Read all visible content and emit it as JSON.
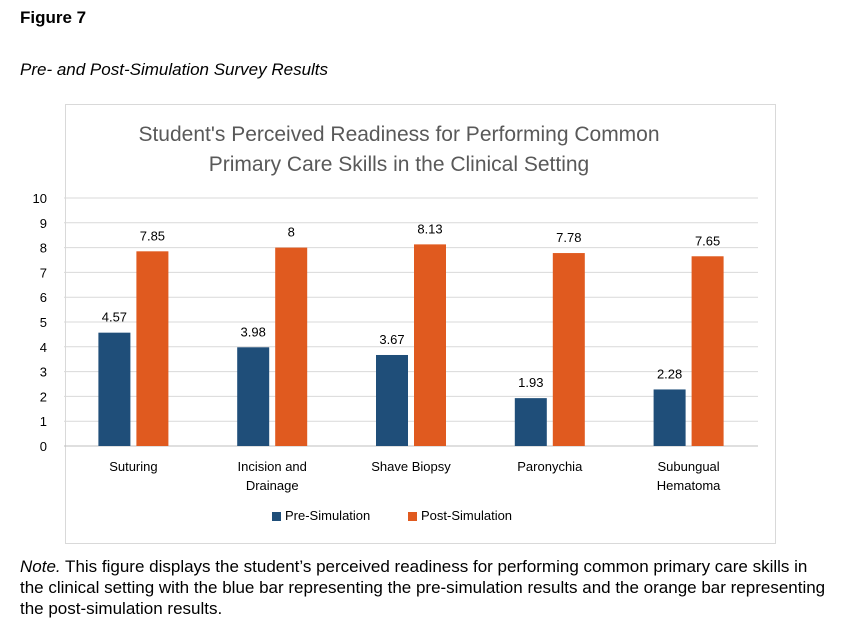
{
  "figure": {
    "label": "Figure 7",
    "caption": "Pre- and Post-Simulation Survey Results"
  },
  "note": {
    "lead": "Note.",
    "text": " This figure displays the student’s perceived readiness for performing common primary care skills in the clinical setting with the blue bar representing the pre-simulation results and the orange bar representing the post-simulation results."
  },
  "chart_data": {
    "type": "bar",
    "title": [
      "Student's Perceived Readiness for Performing Common",
      "Primary Care Skills in the Clinical Setting"
    ],
    "categories": [
      [
        "Suturing"
      ],
      [
        "Incision and",
        "Drainage"
      ],
      [
        "Shave Biopsy"
      ],
      [
        "Paronychia"
      ],
      [
        "Subungual",
        "Hematoma"
      ]
    ],
    "series": [
      {
        "name": "Pre-Simulation",
        "color": "#1f4e79",
        "values": [
          4.57,
          3.98,
          3.67,
          1.93,
          2.28
        ],
        "labels": [
          "4.57",
          "3.98",
          "3.67",
          "1.93",
          "2.28"
        ]
      },
      {
        "name": "Post-Simulation",
        "color": "#e05a1f",
        "values": [
          7.85,
          8,
          8.13,
          7.78,
          7.65
        ],
        "labels": [
          "7.85",
          "8",
          "8.13",
          "7.78",
          "7.65"
        ]
      }
    ],
    "ylim": [
      0,
      10
    ],
    "yticks": [
      "0",
      "1",
      "2",
      "3",
      "4",
      "5",
      "6",
      "7",
      "8",
      "9",
      "10"
    ],
    "grid": true,
    "legend": "bottom"
  }
}
